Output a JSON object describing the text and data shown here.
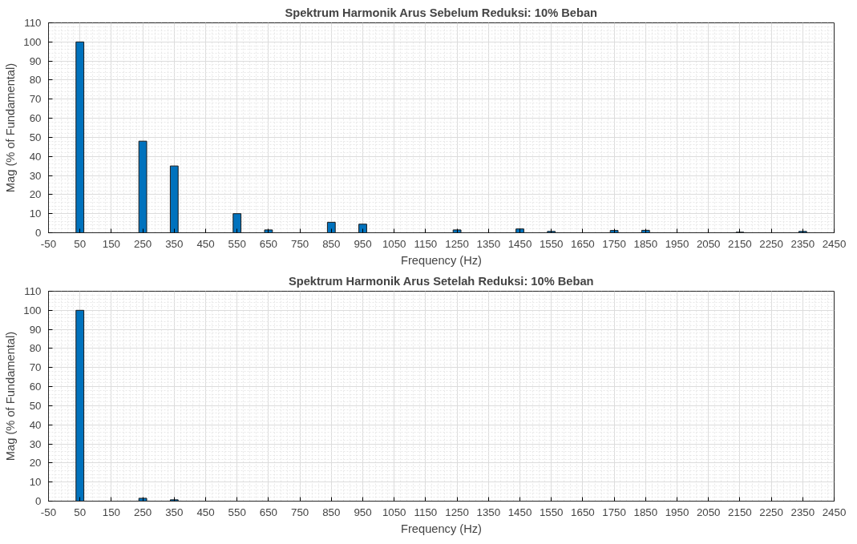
{
  "chart_data": [
    {
      "type": "bar",
      "title": "Spektrum Harmonik Arus Sebelum Reduksi: 10% Beban",
      "xlabel": "Frequency (Hz)",
      "ylabel": "Mag (% of Fundamental)",
      "x": [
        50,
        250,
        350,
        550,
        650,
        850,
        950,
        1250,
        1450,
        1550,
        1750,
        1850,
        2150,
        2350
      ],
      "values": [
        100,
        48,
        35,
        10,
        1.5,
        5.5,
        4.5,
        1.5,
        2,
        0.7,
        1.2,
        1.3,
        0.3,
        0.7
      ],
      "color": "#0072bd",
      "xlim": [
        -50,
        2450
      ],
      "xticks": [
        -50,
        50,
        150,
        250,
        350,
        450,
        550,
        650,
        750,
        850,
        950,
        1050,
        1150,
        1250,
        1350,
        1450,
        1550,
        1650,
        1750,
        1850,
        1950,
        2050,
        2150,
        2250,
        2350,
        2450
      ],
      "ylim": [
        0,
        110
      ],
      "yticks": [
        0,
        10,
        20,
        30,
        40,
        50,
        60,
        70,
        80,
        90,
        100,
        110
      ],
      "grid": true
    },
    {
      "type": "bar",
      "title": "Spektrum Harmonik Arus Setelah Reduksi: 10% Beban",
      "xlabel": "Frequency (Hz)",
      "ylabel": "Mag (% of Fundamental)",
      "x": [
        50,
        250,
        350
      ],
      "values": [
        100,
        1.5,
        0.7
      ],
      "color": "#0072bd",
      "xlim": [
        -50,
        2450
      ],
      "xticks": [
        -50,
        50,
        150,
        250,
        350,
        450,
        550,
        650,
        750,
        850,
        950,
        1050,
        1150,
        1250,
        1350,
        1450,
        1550,
        1650,
        1750,
        1850,
        1950,
        2050,
        2150,
        2250,
        2350,
        2450
      ],
      "ylim": [
        0,
        110
      ],
      "yticks": [
        0,
        10,
        20,
        30,
        40,
        50,
        60,
        70,
        80,
        90,
        100,
        110
      ],
      "grid": true
    }
  ]
}
